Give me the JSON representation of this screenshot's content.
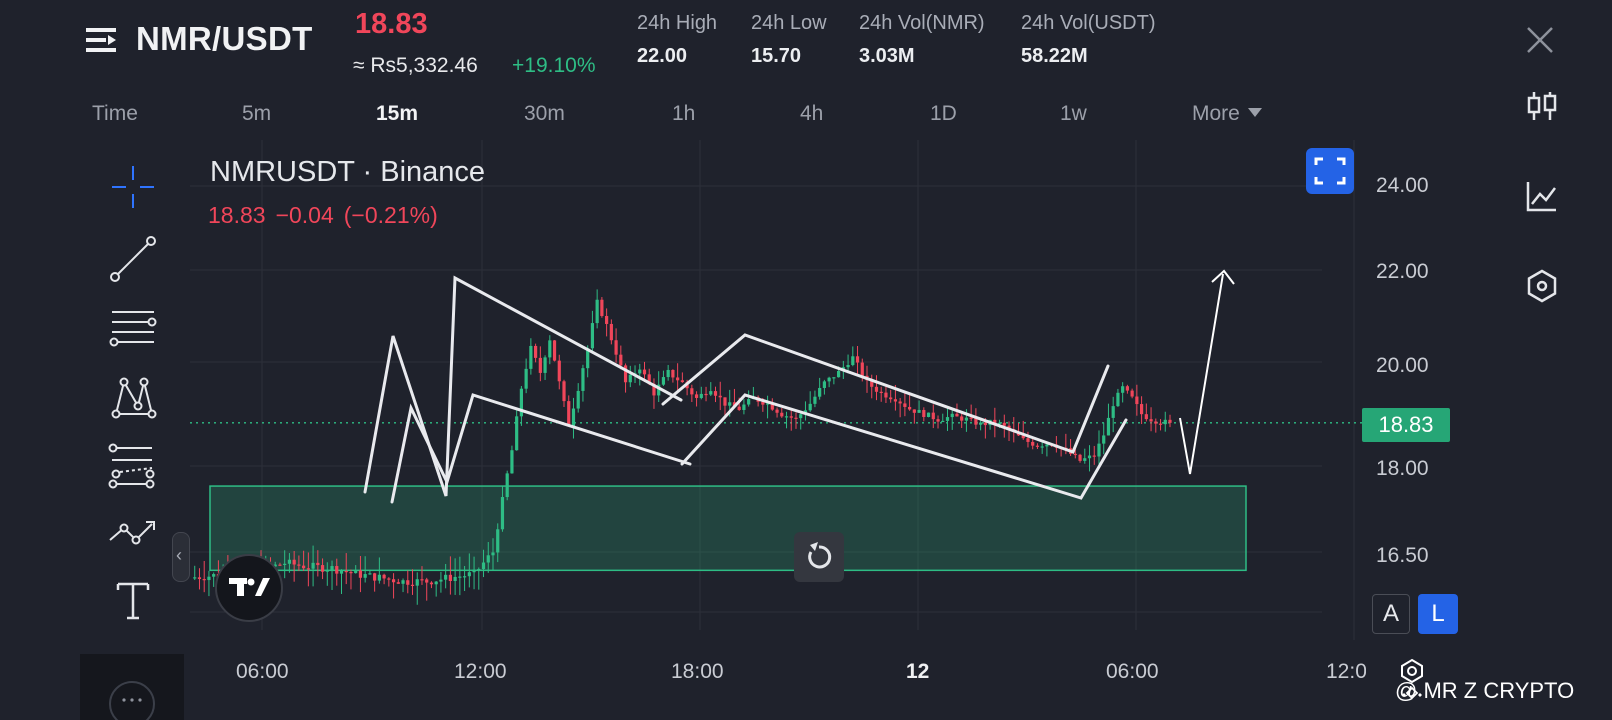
{
  "header": {
    "pair": "NMR/USDT",
    "last_price": "18.83",
    "approx_price": "≈ Rs5,332.46",
    "change_pct": "+19.10%",
    "stats": [
      {
        "label": "24h High",
        "value": "22.00"
      },
      {
        "label": "24h Low",
        "value": "15.70"
      },
      {
        "label": "24h Vol(NMR)",
        "value": "3.03M"
      },
      {
        "label": "24h Vol(USDT)",
        "value": "58.22M"
      }
    ]
  },
  "timeframes": {
    "items": [
      "Time",
      "5m",
      "15m",
      "30m",
      "1h",
      "4h",
      "1D",
      "1w",
      "More"
    ],
    "active": "15m"
  },
  "chart": {
    "title": "NMRUSDT · Binance",
    "last": "18.83",
    "change": "−0.04",
    "change_pct": "(−0.21%)",
    "y_ticks": [
      "24.00",
      "22.00",
      "20.00",
      "18.00",
      "16.50"
    ],
    "x_ticks": [
      "06:00",
      "12:00",
      "18:00",
      "12",
      "06:00",
      "12:0"
    ],
    "price_tag": "18.83",
    "scale_buttons": {
      "auto": "A",
      "log": "L"
    },
    "colors": {
      "up": "#2ebd85",
      "down": "#f0465a",
      "zone": "#2ebd85",
      "accent": "#2463e6"
    }
  },
  "chart_data": {
    "type": "candlestick",
    "symbol": "NMRUSDT",
    "exchange": "Binance",
    "interval": "15m",
    "ylim": [
      15.6,
      24.6
    ],
    "y_ticks": [
      24.0,
      22.0,
      20.0,
      18.0,
      16.5
    ],
    "x_ticks": [
      "06:00",
      "12:00",
      "18:00",
      "12",
      "06:00",
      "12:0"
    ],
    "last_price": 18.83,
    "demand_zone": {
      "low": 16.25,
      "high": 17.65
    },
    "pattern_annotation": "zigzag flags with projected breakout toward 22.00",
    "price_path": [
      [
        0,
        16.15
      ],
      [
        10,
        16.18
      ],
      [
        20,
        16.2
      ],
      [
        30,
        16.25
      ],
      [
        40,
        16.35
      ],
      [
        50,
        16.3
      ],
      [
        60,
        16.28
      ],
      [
        70,
        16.2
      ],
      [
        80,
        16.15
      ],
      [
        90,
        16.1
      ],
      [
        100,
        16.1
      ],
      [
        110,
        16.15
      ],
      [
        120,
        16.2
      ],
      [
        128,
        16.5
      ],
      [
        132,
        17.4
      ],
      [
        136,
        18.3
      ],
      [
        140,
        19.5
      ],
      [
        144,
        20.3
      ],
      [
        148,
        19.8
      ],
      [
        152,
        20.5
      ],
      [
        156,
        19.6
      ],
      [
        160,
        18.8
      ],
      [
        164,
        19.5
      ],
      [
        168,
        20.3
      ],
      [
        172,
        21.3
      ],
      [
        176,
        20.8
      ],
      [
        180,
        20.2
      ],
      [
        184,
        19.6
      ],
      [
        190,
        19.9
      ],
      [
        196,
        19.4
      ],
      [
        202,
        19.8
      ],
      [
        208,
        19.6
      ],
      [
        214,
        19.3
      ],
      [
        220,
        19.5
      ],
      [
        226,
        19.2
      ],
      [
        232,
        19.1
      ],
      [
        238,
        19.3
      ],
      [
        244,
        19.2
      ],
      [
        250,
        19.0
      ],
      [
        256,
        18.9
      ],
      [
        262,
        19.2
      ],
      [
        268,
        19.6
      ],
      [
        274,
        19.8
      ],
      [
        280,
        20.1
      ],
      [
        286,
        19.6
      ],
      [
        292,
        19.4
      ],
      [
        298,
        19.3
      ],
      [
        304,
        19.1
      ],
      [
        310,
        19.0
      ],
      [
        316,
        18.9
      ],
      [
        322,
        18.95
      ],
      [
        328,
        18.9
      ],
      [
        334,
        18.8
      ],
      [
        340,
        18.85
      ],
      [
        346,
        18.7
      ],
      [
        352,
        18.5
      ],
      [
        358,
        18.4
      ],
      [
        364,
        18.45
      ],
      [
        370,
        18.3
      ],
      [
        376,
        18.1
      ],
      [
        382,
        18.2
      ],
      [
        386,
        18.6
      ],
      [
        390,
        19.2
      ],
      [
        394,
        19.5
      ],
      [
        398,
        19.3
      ],
      [
        402,
        19.0
      ],
      [
        406,
        18.9
      ],
      [
        410,
        18.85
      ],
      [
        414,
        18.83
      ]
    ]
  },
  "toolbar_left": [
    "crosshair-tool",
    "trendline-tool",
    "horizontal-lines-tool",
    "pattern-tool",
    "fib-tool",
    "path-tool",
    "text-tool"
  ],
  "right_rail": [
    "candles-icon",
    "indicators-icon",
    "settings-hex-icon"
  ],
  "watermark": "@ MR Z CRYPTO"
}
